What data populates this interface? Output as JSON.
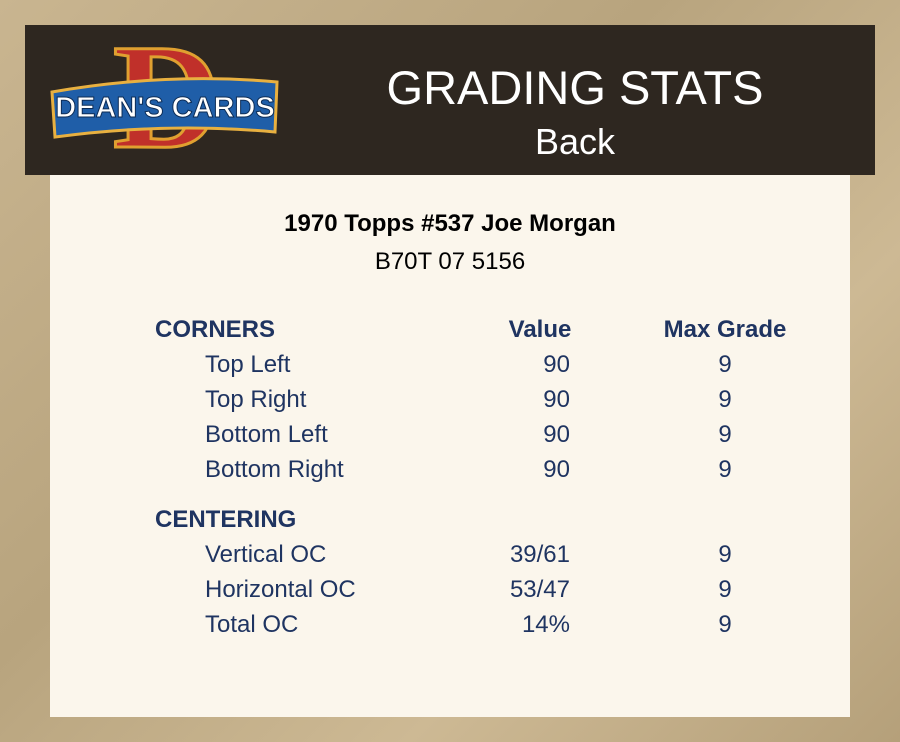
{
  "logo": {
    "letter": "D",
    "text": "DEAN'S CARDS"
  },
  "header": {
    "title": "GRADING STATS",
    "subtitle": "Back"
  },
  "card": {
    "name": "1970 Topps #537 Joe Morgan",
    "serial": "B70T 07 5156"
  },
  "sections": [
    {
      "title": "CORNERS",
      "columns": [
        "Value",
        "Max Grade"
      ],
      "rows": [
        [
          "Top Left",
          "90",
          "9"
        ],
        [
          "Top Right",
          "90",
          "9"
        ],
        [
          "Bottom Left",
          "90",
          "9"
        ],
        [
          "Bottom Right",
          "90",
          "9"
        ]
      ]
    },
    {
      "title": "CENTERING",
      "rows": [
        [
          "Vertical OC",
          "39/61",
          "9"
        ],
        [
          "Horizontal OC",
          "53/47",
          "9"
        ],
        [
          "Total OC",
          "14%",
          "9"
        ]
      ]
    }
  ]
}
